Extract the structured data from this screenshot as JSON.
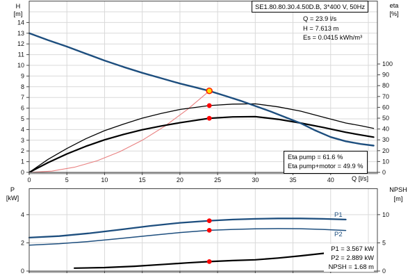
{
  "title": "SE1.80.80.30.4.50D.B, 3*400 V, 50Hz",
  "duty_point": {
    "q": "Q = 23.9 l/s",
    "h": "H = 7.613 m",
    "es": "Es = 0.0415 kWh/m³"
  },
  "eta_box": {
    "pump": "Eta pump = 61.6 %",
    "pump_motor": "Eta pump+motor = 49.9 %"
  },
  "power_box": {
    "p1": "P1 = 3.567 kW",
    "p2": "P2 = 2.889 kW",
    "npsh": "NPSH = 1.68 m"
  },
  "curve_labels": {
    "p1": "P1",
    "p2": "P2"
  },
  "axis_labels": {
    "h": "H",
    "h_unit": "[m]",
    "eta": "eta",
    "eta_unit": "[%]",
    "q": "Q [l/s]",
    "p": "P",
    "p_unit": "[kW]",
    "npsh": "NPSH",
    "npsh_unit": "[m]"
  },
  "colors": {
    "curve_blue": "#1d4e7e",
    "black": "#000000",
    "system_red": "#e98080",
    "marker_red": "#ff0000",
    "duty_fill": "#ffdf00",
    "duty_ring": "#ff2000",
    "grid": "#d9d9d9",
    "border": "#444444",
    "axis": "#9c9c9c",
    "text": "#111111"
  },
  "chart_data": [
    {
      "type": "line",
      "name": "head-and-efficiency",
      "x_axis": {
        "label": "Q [l/s]",
        "min": 0,
        "max": 46.2,
        "ticks": [
          0,
          5,
          10,
          15,
          20,
          25,
          30,
          35,
          40
        ],
        "grid": [
          5,
          10,
          15,
          20,
          25,
          30,
          35,
          40,
          45
        ],
        "show_labels": true
      },
      "y_left": {
        "label": "H [m]",
        "min": 0,
        "max": 16,
        "ticks": [
          0,
          1,
          2,
          3,
          4,
          5,
          6,
          7,
          8,
          9,
          10,
          11,
          12,
          13,
          14
        ],
        "grid": [
          1,
          2,
          3,
          4,
          5,
          6,
          7,
          8,
          9,
          10,
          11,
          12,
          13,
          14,
          15
        ]
      },
      "y_right": {
        "label": "eta [%]",
        "min": 0,
        "max": 158,
        "ticks": [
          0,
          10,
          20,
          30,
          40,
          50,
          60,
          70,
          80,
          90,
          100
        ]
      },
      "series": [
        {
          "name": "system-curve",
          "axis": "left",
          "color": "system_red",
          "width": 1.1,
          "x": [
            0,
            3,
            6,
            9,
            12,
            15,
            18,
            21,
            23.9
          ],
          "y": [
            0,
            0.12,
            0.48,
            1.08,
            1.92,
            3.0,
            4.32,
            5.88,
            7.613
          ]
        },
        {
          "name": "eta-pump",
          "axis": "right",
          "color": "black",
          "width": 1.3,
          "x": [
            0,
            2.5,
            5,
            7.5,
            10,
            12.5,
            15,
            17.5,
            20,
            23.9,
            27,
            30,
            33,
            36,
            39,
            42,
            44,
            45.7
          ],
          "y": [
            0,
            12,
            22,
            31,
            38.5,
            44.5,
            50,
            54.3,
            58,
            61.6,
            63,
            63.2,
            60.5,
            56.5,
            51,
            45.5,
            43,
            40.5
          ]
        },
        {
          "name": "eta-pump-motor",
          "axis": "right",
          "color": "black",
          "width": 2.2,
          "x": [
            0,
            2.5,
            5,
            7.5,
            10,
            12.5,
            15,
            17.5,
            20,
            23.9,
            27,
            30,
            33,
            36,
            39,
            42,
            44,
            45.7
          ],
          "y": [
            0,
            9,
            17,
            24,
            30,
            35,
            39.3,
            42.8,
            45.8,
            49.9,
            51.2,
            51.4,
            49,
            45.5,
            41.5,
            37,
            34.5,
            32.5
          ]
        },
        {
          "name": "head",
          "axis": "left",
          "color": "curve_blue",
          "width": 2.4,
          "x": [
            0,
            2.5,
            5,
            7.5,
            10,
            12.5,
            15,
            17.5,
            20,
            22,
            23.9,
            26,
            28,
            30,
            32,
            34,
            36,
            38,
            40,
            42,
            44,
            45.7
          ],
          "y": [
            13.0,
            12.35,
            11.75,
            11.1,
            10.45,
            9.85,
            9.3,
            8.8,
            8.3,
            7.95,
            7.613,
            7.15,
            6.7,
            6.2,
            5.7,
            5.15,
            4.6,
            3.9,
            3.3,
            2.9,
            2.65,
            2.5
          ]
        }
      ],
      "markers": [
        {
          "x": 23.9,
          "y": 61.6,
          "axis": "right",
          "style": "dot"
        },
        {
          "x": 23.9,
          "y": 49.9,
          "axis": "right",
          "style": "dot"
        },
        {
          "x": 23.9,
          "y": 7.613,
          "axis": "left",
          "style": "duty"
        }
      ],
      "duty_values": {
        "Q": 23.9,
        "H": 7.613,
        "Es": 0.0415,
        "eta_pump": 61.6,
        "eta_pump_motor": 49.9
      }
    },
    {
      "type": "line",
      "name": "power-and-npsh",
      "x_axis": {
        "label": "Q [l/s]",
        "min": 0,
        "max": 46.2,
        "ticks": [
          0,
          5,
          10,
          15,
          20,
          25,
          30,
          35,
          40
        ],
        "grid": [
          5,
          10,
          15,
          20,
          25,
          30,
          35,
          40,
          45
        ],
        "show_labels": false
      },
      "y_left": {
        "label": "P [kW]",
        "min": 0,
        "max": 5.84,
        "ticks": [
          0,
          2,
          4
        ],
        "grid": [
          2,
          4
        ]
      },
      "y_right": {
        "label": "NPSH [m]",
        "min": 0,
        "max": 14.6,
        "ticks": [
          0,
          5,
          10
        ]
      },
      "series": [
        {
          "name": "npsh",
          "axis": "right",
          "color": "black",
          "width": 2.2,
          "x": [
            6,
            10,
            14,
            18,
            21,
            23.9,
            27,
            30,
            33,
            36,
            39.5
          ],
          "y": [
            0.52,
            0.62,
            0.85,
            1.2,
            1.45,
            1.68,
            1.86,
            2.0,
            2.3,
            2.7,
            3.2
          ]
        },
        {
          "name": "p2",
          "axis": "left",
          "color": "curve_blue",
          "width": 1.5,
          "x": [
            0,
            4,
            8,
            12,
            16,
            20,
            23.9,
            27,
            30,
            33,
            36,
            39,
            42
          ],
          "y": [
            1.84,
            1.94,
            2.1,
            2.3,
            2.52,
            2.73,
            2.889,
            2.95,
            2.99,
            3.01,
            3.0,
            2.95,
            2.88
          ]
        },
        {
          "name": "p1",
          "axis": "left",
          "color": "curve_blue",
          "width": 2.3,
          "x": [
            0,
            4,
            8,
            12,
            16,
            20,
            23.9,
            27,
            30,
            33,
            36,
            39,
            42
          ],
          "y": [
            2.37,
            2.48,
            2.68,
            2.93,
            3.2,
            3.42,
            3.567,
            3.65,
            3.7,
            3.73,
            3.73,
            3.7,
            3.65
          ]
        }
      ],
      "markers": [
        {
          "x": 23.9,
          "y": 3.567,
          "axis": "left",
          "style": "dot"
        },
        {
          "x": 23.9,
          "y": 2.889,
          "axis": "left",
          "style": "dot"
        },
        {
          "x": 23.9,
          "y": 1.68,
          "axis": "right",
          "style": "dot"
        }
      ],
      "duty_values": {
        "P1": 3.567,
        "P2": 2.889,
        "NPSH": 1.68
      }
    }
  ]
}
